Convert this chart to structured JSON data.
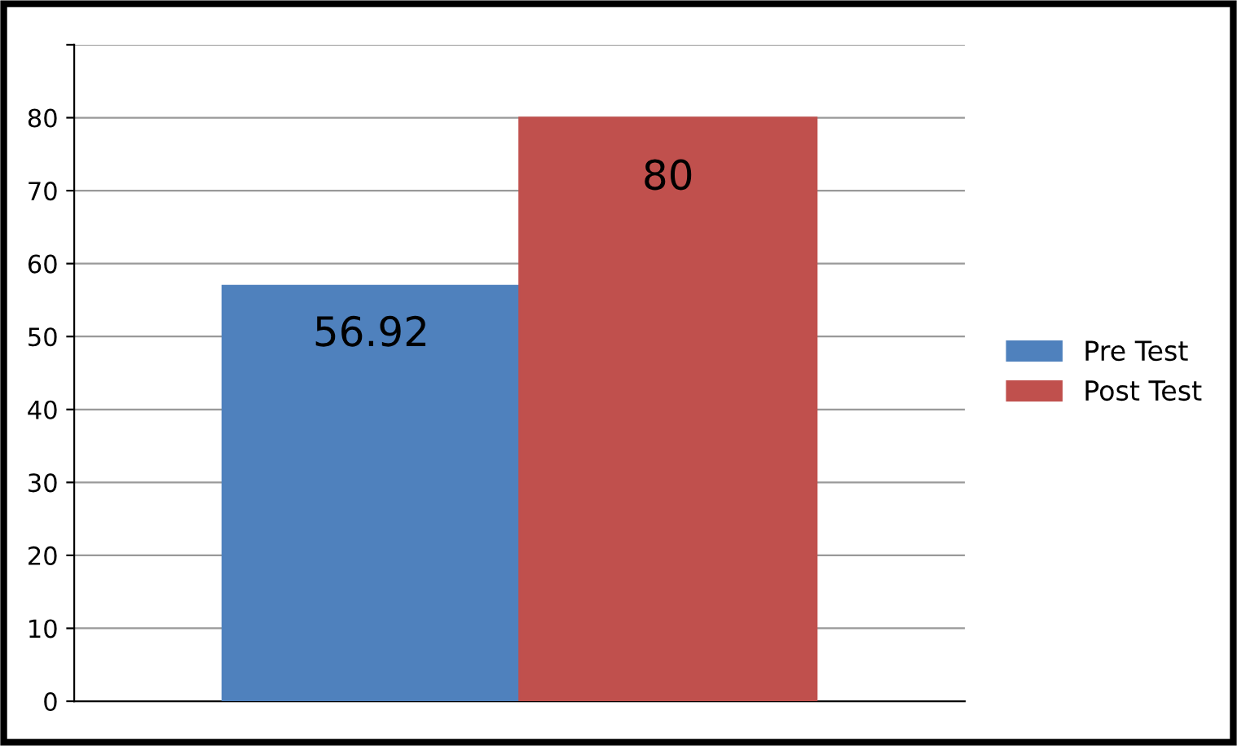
{
  "chart_data": {
    "type": "bar",
    "categories": [
      null
    ],
    "series": [
      {
        "name": "Pre Test",
        "color": "#4f81bd",
        "values": [
          56.92
        ]
      },
      {
        "name": "Post Test",
        "color": "#c0504d",
        "values": [
          80
        ]
      }
    ],
    "ylim": [
      0,
      90
    ],
    "yticks": [
      0,
      10,
      20,
      30,
      40,
      50,
      60,
      70,
      80,
      {
        "value": 90,
        "label": null
      }
    ],
    "grid": "y",
    "legend": "right",
    "data_labels": true
  }
}
